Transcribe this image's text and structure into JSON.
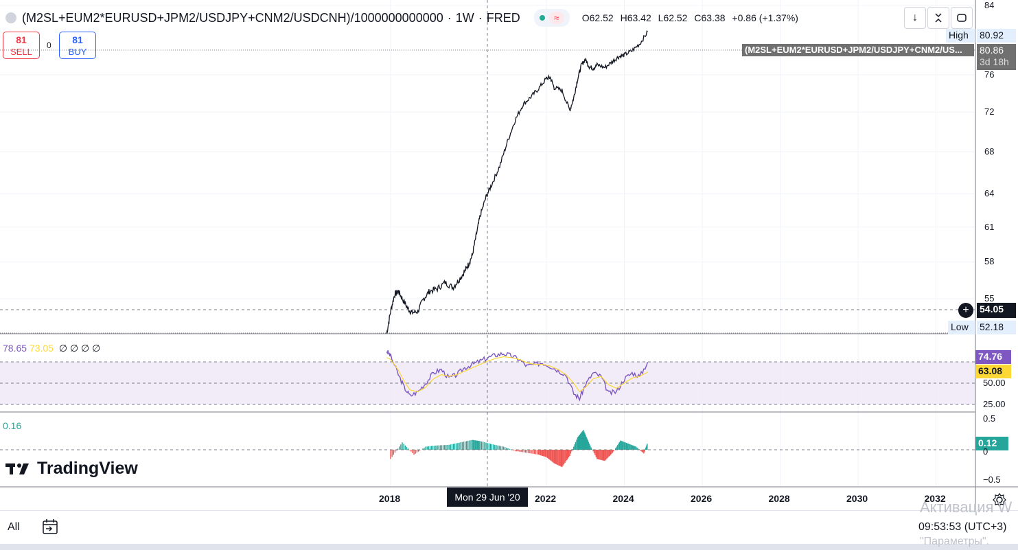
{
  "header": {
    "symbol": "(M2SL+EUM2*EURUSD+JPM2/USDJPY+CNM2/USDCNH)/1000000000000",
    "interval": "1W",
    "source": "FRED",
    "separator": "·",
    "ohlc": {
      "o_key": "O",
      "o": "62.52",
      "h_key": "H",
      "h": "63.42",
      "l_key": "L",
      "l": "62.52",
      "c_key": "C",
      "c": "63.38",
      "change": "+0.86 (+1.37%)"
    },
    "wave_icon": "≈"
  },
  "trade": {
    "sell_price": "81",
    "sell_label": "SELL",
    "spread": "0",
    "buy_price": "81",
    "buy_label": "BUY"
  },
  "price_axis": {
    "ticks": [
      "84",
      "76",
      "72",
      "68",
      "64",
      "61",
      "58",
      "55"
    ],
    "high_label": "High",
    "high_value": "80.92",
    "last_value": "80.86",
    "countdown": "3d 18h",
    "crosshair_value": "54.05",
    "low_label": "Low",
    "low_value": "52.18",
    "series_tag": "(M2SL+EUM2*EURUSD+JPM2/USDJPY+CNM2/US..."
  },
  "rsi_pane": {
    "legend_rsi": "78.65",
    "legend_ma": "73.05",
    "legend_rest": "∅ ∅ ∅ ∅",
    "rsi_tag": "74.76",
    "ma_tag": "63.08",
    "ticks": [
      "50.00",
      "25.00"
    ],
    "rsi_color": "#7e57c2",
    "ma_color": "#fdd835"
  },
  "hist_pane": {
    "legend_value": "0.16",
    "tag": "0.12",
    "ticks": [
      "0.5",
      "0",
      "−0.5"
    ],
    "pos_color": "#26a69a",
    "neg_color": "#ef5350"
  },
  "time_axis": {
    "ticks": [
      "2018",
      "2022",
      "2024",
      "2026",
      "2028",
      "2030",
      "2032"
    ],
    "crosshair_label": "Mon 29 Jun '20"
  },
  "logo": "TradingView",
  "bottom": {
    "range_label": "All",
    "clock": "09:53:53 (UTC+3)"
  },
  "overlay": {
    "activation_text": "Активация W",
    "settings_text": "\"Параметры\"."
  },
  "chart_data": [
    {
      "type": "line",
      "title": "(M2SL+EUM2*EURUSD+JPM2/USDJPY+CNM2/USDCNH)/1000000000000",
      "x_unit": "year",
      "x": [
        2017.9,
        2018.0,
        2018.1,
        2018.2,
        2018.3,
        2018.45,
        2018.55,
        2018.7,
        2018.85,
        2019.0,
        2019.2,
        2019.4,
        2019.6,
        2019.75,
        2019.9,
        2020.0,
        2020.1,
        2020.2,
        2020.3,
        2020.45,
        2020.6,
        2020.8,
        2021.0,
        2021.2,
        2021.4,
        2021.6,
        2021.8,
        2022.0,
        2022.1,
        2022.2,
        2022.4,
        2022.6,
        2022.7,
        2022.8,
        2022.9,
        2023.0,
        2023.1,
        2023.2,
        2023.3,
        2023.5,
        2023.7,
        2023.85,
        2024.0,
        2024.2,
        2024.4,
        2024.6
      ],
      "values": [
        52.3,
        54.0,
        55.3,
        55.6,
        55.0,
        54.2,
        53.9,
        54.0,
        55.0,
        55.6,
        55.8,
        56.3,
        55.9,
        56.5,
        57.2,
        57.8,
        58.6,
        60.3,
        62.0,
        63.7,
        64.9,
        66.6,
        69.0,
        71.2,
        72.8,
        73.6,
        74.5,
        75.6,
        75.7,
        74.6,
        74.3,
        72.2,
        73.5,
        75.5,
        77.1,
        77.7,
        76.9,
        76.7,
        77.1,
        76.8,
        77.5,
        78.0,
        78.2,
        78.7,
        79.5,
        80.86
      ],
      "ylim": [
        52.18,
        84
      ],
      "scale": "log"
    },
    {
      "type": "line",
      "name": "RSI",
      "x": [
        2017.9,
        2018.0,
        2018.2,
        2018.35,
        2018.5,
        2018.7,
        2018.9,
        2019.1,
        2019.3,
        2019.5,
        2019.7,
        2019.9,
        2020.1,
        2020.3,
        2020.5,
        2020.7,
        2020.9,
        2021.1,
        2021.3,
        2021.5,
        2021.7,
        2021.9,
        2022.1,
        2022.3,
        2022.5,
        2022.7,
        2022.85,
        2023.0,
        2023.2,
        2023.4,
        2023.6,
        2023.8,
        2024.0,
        2024.2,
        2024.4,
        2024.6
      ],
      "series": [
        {
          "name": "78.65",
          "values": [
            88,
            82,
            60,
            45,
            35,
            40,
            50,
            62,
            66,
            56,
            60,
            68,
            72,
            76,
            80,
            83,
            85,
            82,
            78,
            70,
            72,
            74,
            70,
            65,
            60,
            38,
            32,
            48,
            62,
            58,
            38,
            40,
            55,
            62,
            58,
            74.76
          ]
        },
        {
          "name": "73.05",
          "values": [
            80,
            78,
            65,
            52,
            42,
            40,
            45,
            55,
            60,
            58,
            60,
            64,
            68,
            72,
            76,
            79,
            81,
            80,
            78,
            74,
            72,
            72,
            70,
            66,
            60,
            50,
            40,
            45,
            55,
            58,
            48,
            44,
            50,
            56,
            58,
            63.08
          ]
        }
      ],
      "ylim": [
        20,
        90
      ],
      "bands": [
        30,
        70
      ]
    },
    {
      "type": "bar",
      "name": "Histogram",
      "x": [
        2018.0,
        2018.3,
        2018.6,
        2018.9,
        2019.2,
        2019.5,
        2019.8,
        2020.1,
        2020.3,
        2020.6,
        2020.9,
        2021.2,
        2021.5,
        2021.8,
        2022.0,
        2022.2,
        2022.4,
        2022.6,
        2022.8,
        2022.95,
        2023.1,
        2023.3,
        2023.5,
        2023.7,
        2023.9,
        2024.1,
        2024.3,
        2024.5,
        2024.6
      ],
      "values": [
        -0.15,
        0.12,
        -0.08,
        0.05,
        0.07,
        0.08,
        0.12,
        0.16,
        0.14,
        0.09,
        0.05,
        -0.02,
        -0.05,
        -0.08,
        -0.12,
        -0.22,
        -0.28,
        -0.1,
        0.2,
        0.32,
        0.1,
        -0.15,
        -0.18,
        -0.05,
        0.15,
        0.1,
        0.05,
        -0.06,
        0.12
      ],
      "ylim": [
        -0.5,
        0.5
      ]
    }
  ]
}
